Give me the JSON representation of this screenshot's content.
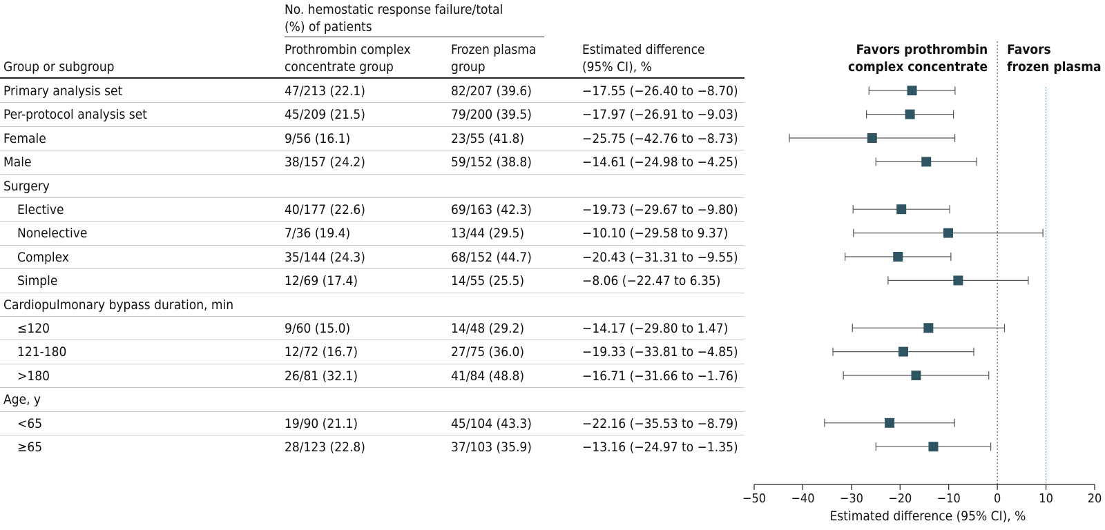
{
  "table": {
    "header_group": "No. hemostatic response failure/total (%) of patients",
    "header_group_line1": "No. hemostatic response failure/total",
    "header_group_line2": "(%) of patients",
    "col_group": "Group or subgroup",
    "col_pcc_line1": "Prothrombin complex",
    "col_pcc_line2": "concentrate group",
    "col_fp_line1": "Frozen plasma",
    "col_fp_line2": "group",
    "col_diff_line1": "Estimated difference",
    "col_diff_line2": "(95% CI), %"
  },
  "rows": [
    {
      "label": "Primary analysis set",
      "indent": 0,
      "pcc": "47/213 (22.1)",
      "fp": "82/207 (39.6)",
      "diff": "−17.55 (−26.40 to −8.70)"
    },
    {
      "label": "Per-protocol analysis set",
      "indent": 0,
      "pcc": "45/209 (21.5)",
      "fp": "79/200 (39.5)",
      "diff": "−17.97 (−26.91 to −9.03)"
    },
    {
      "label": "Female",
      "indent": 0,
      "pcc": "9/56 (16.1)",
      "fp": "23/55 (41.8)",
      "diff": "−25.75 (−42.76 to −8.73)"
    },
    {
      "label": "Male",
      "indent": 0,
      "pcc": "38/157 (24.2)",
      "fp": "59/152 (38.8)",
      "diff": "−14.61 (−24.98 to −4.25)"
    },
    {
      "label": "Surgery",
      "indent": 0,
      "pcc": "",
      "fp": "",
      "diff": ""
    },
    {
      "label": "Elective",
      "indent": 1,
      "pcc": "40/177 (22.6)",
      "fp": "69/163 (42.3)",
      "diff": "−19.73 (−29.67 to −9.80)"
    },
    {
      "label": "Nonelective",
      "indent": 1,
      "pcc": "7/36 (19.4)",
      "fp": "13/44 (29.5)",
      "diff": "−10.10 (−29.58 to 9.37)"
    },
    {
      "label": "Complex",
      "indent": 1,
      "pcc": "35/144 (24.3)",
      "fp": "68/152 (44.7)",
      "diff": "−20.43 (−31.31 to −9.55)"
    },
    {
      "label": "Simple",
      "indent": 1,
      "pcc": "12/69 (17.4)",
      "fp": "14/55 (25.5)",
      "diff": "−8.06 (−22.47 to 6.35)"
    },
    {
      "label": "Cardiopulmonary bypass duration, min",
      "indent": 0,
      "pcc": "",
      "fp": "",
      "diff": ""
    },
    {
      "label": "≤120",
      "indent": 1,
      "pcc": "9/60 (15.0)",
      "fp": "14/48 (29.2)",
      "diff": "−14.17 (−29.80 to 1.47)"
    },
    {
      "label": "121-180",
      "indent": 1,
      "pcc": "12/72 (16.7)",
      "fp": "27/75 (36.0)",
      "diff": "−19.33 (−33.81 to −4.85)"
    },
    {
      "label": ">180",
      "indent": 1,
      "pcc": "26/81 (32.1)",
      "fp": "41/84 (48.8)",
      "diff": "−16.71 (−31.66 to −1.76)"
    },
    {
      "label": "Age, y",
      "indent": 0,
      "pcc": "",
      "fp": "",
      "diff": ""
    },
    {
      "label": "<65",
      "indent": 1,
      "pcc": "19/90 (21.1)",
      "fp": "45/104 (43.3)",
      "diff": "−22.16 (−35.53 to −8.79)"
    },
    {
      "label": "≥65",
      "indent": 1,
      "pcc": "28/123 (22.8)",
      "fp": "37/103 (35.9)",
      "diff": "−13.16 (−24.97 to −1.35)"
    }
  ],
  "chart_data": {
    "type": "forest",
    "xlabel": "Estimated difference (95% CI), %",
    "xlim": [
      -50,
      20
    ],
    "ticks": [
      -50,
      -40,
      -30,
      -20,
      -10,
      0,
      10,
      20
    ],
    "tick_labels": [
      "−50",
      "−40",
      "−30",
      "−20",
      "−10",
      "0",
      "10",
      "20"
    ],
    "null_line": 0,
    "margin_line": 10,
    "favors_left_line1": "Favors prothrombin",
    "favors_left_line2": "complex concentrate",
    "favors_right_line1": "Favors",
    "favors_right_line2": "frozen plasma",
    "marker_color": "#2f5563",
    "margin_color": "#4aa8d8",
    "points": [
      {
        "row": 0,
        "est": -17.55,
        "lo": -26.4,
        "hi": -8.7
      },
      {
        "row": 1,
        "est": -17.97,
        "lo": -26.91,
        "hi": -9.03
      },
      {
        "row": 2,
        "est": -25.75,
        "lo": -42.76,
        "hi": -8.73
      },
      {
        "row": 3,
        "est": -14.61,
        "lo": -24.98,
        "hi": -4.25
      },
      {
        "row": 5,
        "est": -19.73,
        "lo": -29.67,
        "hi": -9.8
      },
      {
        "row": 6,
        "est": -10.1,
        "lo": -29.58,
        "hi": 9.37
      },
      {
        "row": 7,
        "est": -20.43,
        "lo": -31.31,
        "hi": -9.55
      },
      {
        "row": 8,
        "est": -8.06,
        "lo": -22.47,
        "hi": 6.35
      },
      {
        "row": 10,
        "est": -14.17,
        "lo": -29.8,
        "hi": 1.47
      },
      {
        "row": 11,
        "est": -19.33,
        "lo": -33.81,
        "hi": -4.85
      },
      {
        "row": 12,
        "est": -16.71,
        "lo": -31.66,
        "hi": -1.76
      },
      {
        "row": 14,
        "est": -22.16,
        "lo": -35.53,
        "hi": -8.79
      },
      {
        "row": 15,
        "est": -13.16,
        "lo": -24.97,
        "hi": -1.35
      }
    ]
  }
}
